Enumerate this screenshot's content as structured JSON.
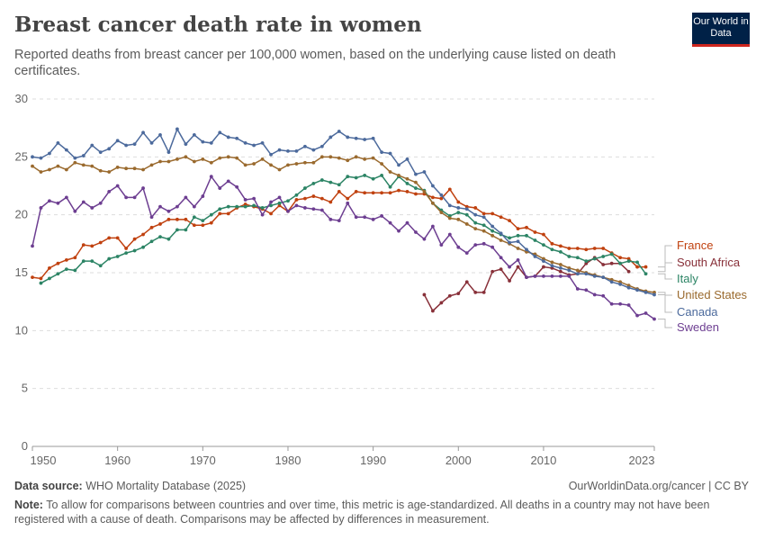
{
  "header": {
    "title": "Breast cancer death rate in women",
    "subtitle": "Reported deaths from breast cancer per 100,000 women, based on the underlying cause listed on death certificates.",
    "logo": "Our World in Data"
  },
  "footer": {
    "source_label": "Data source:",
    "source": "WHO Mortality Database (2025)",
    "license": "OurWorldinData.org/cancer | CC BY",
    "note_label": "Note:",
    "note": "To allow for comparisons between countries and over time, this metric is age-standardized. All deaths in a country may not have been registered with a cause of death. Comparisons may be affected by differences in measurement."
  },
  "chart_data": {
    "type": "line",
    "title": "Breast cancer death rate in women",
    "xlabel": "",
    "ylabel": "",
    "xlim": [
      1950,
      2023
    ],
    "ylim": [
      0,
      30
    ],
    "grid": "horizontal dashed",
    "legend": "right, inline labels",
    "xticks": [
      "1950",
      "1960",
      "1970",
      "1980",
      "1990",
      "2000",
      "2010",
      "2023"
    ],
    "yticks": [
      "0",
      "5",
      "10",
      "15",
      "20",
      "25",
      "30"
    ],
    "series": [
      {
        "name": "France",
        "color": "#c0410f",
        "start": 1950,
        "values": [
          14.6,
          14.5,
          15.4,
          15.8,
          16.1,
          16.3,
          17.4,
          17.3,
          17.6,
          18.0,
          18.0,
          17.1,
          17.9,
          18.3,
          18.9,
          19.2,
          19.6,
          19.6,
          19.6,
          19.1,
          19.1,
          19.3,
          20.1,
          20.1,
          20.6,
          20.9,
          20.7,
          20.5,
          20.1,
          20.8,
          20.3,
          21.3,
          21.4,
          21.6,
          21.4,
          21.1,
          22.0,
          21.4,
          22.0,
          21.9,
          21.9,
          21.9,
          21.9,
          22.1,
          22.0,
          21.8,
          21.8,
          21.5,
          21.4,
          22.2,
          21.1,
          20.7,
          20.6,
          20.1,
          20.1,
          19.8,
          19.5,
          18.8,
          18.9,
          18.5,
          18.3,
          17.5,
          17.3,
          17.1,
          17.1,
          17.0,
          17.1,
          17.1,
          16.7,
          16.3,
          16.2,
          15.5,
          15.5
        ]
      },
      {
        "name": "South Africa",
        "color": "#883039",
        "start": 1996,
        "values": [
          13.1,
          11.7,
          12.4,
          13.0,
          13.2,
          14.2,
          13.3,
          13.3,
          15.1,
          15.3,
          14.3,
          15.5,
          14.6,
          14.7,
          15.5,
          15.4,
          15.1,
          14.8,
          14.9,
          15.8,
          16.3,
          15.7,
          15.8,
          15.8,
          15.1
        ]
      },
      {
        "name": "Italy",
        "color": "#2c8465",
        "start": 1951,
        "values": [
          14.1,
          14.5,
          14.9,
          15.3,
          15.2,
          16.0,
          16.0,
          15.6,
          16.2,
          16.4,
          16.7,
          16.9,
          17.2,
          17.7,
          18.1,
          17.9,
          18.7,
          18.7,
          19.8,
          19.5,
          20.0,
          20.5,
          20.7,
          20.7,
          20.7,
          20.8,
          20.6,
          20.8,
          21.0,
          21.2,
          21.7,
          22.3,
          22.7,
          23.0,
          22.8,
          22.6,
          23.3,
          23.2,
          23.4,
          23.1,
          23.4,
          22.4,
          23.3,
          22.7,
          22.3,
          22.1,
          21.0,
          20.4,
          19.9,
          20.2,
          20.0,
          19.3,
          19.1,
          18.6,
          18.3,
          18.0,
          18.2,
          18.2,
          17.8,
          17.4,
          17.0,
          16.8,
          16.4,
          16.3,
          16.0,
          16.2,
          16.4,
          16.6,
          15.8,
          16.0,
          15.9,
          14.9
        ]
      },
      {
        "name": "United States",
        "color": "#9a6a2e",
        "start": 1950,
        "values": [
          24.2,
          23.7,
          23.9,
          24.2,
          23.9,
          24.5,
          24.3,
          24.2,
          23.8,
          23.7,
          24.1,
          24.0,
          24.0,
          23.9,
          24.3,
          24.6,
          24.6,
          24.8,
          25.0,
          24.6,
          24.8,
          24.5,
          24.9,
          25.0,
          24.9,
          24.3,
          24.4,
          24.8,
          24.3,
          23.9,
          24.3,
          24.4,
          24.5,
          24.5,
          25.0,
          25.0,
          24.9,
          24.7,
          25.0,
          24.8,
          24.9,
          24.4,
          23.7,
          23.4,
          23.1,
          22.8,
          22.0,
          21.0,
          20.2,
          19.7,
          19.6,
          19.2,
          18.8,
          18.6,
          18.2,
          17.8,
          17.5,
          17.1,
          16.8,
          16.6,
          16.2,
          15.9,
          15.7,
          15.4,
          15.2,
          15.0,
          14.8,
          14.6,
          14.4,
          14.2,
          13.9,
          13.6,
          13.4,
          13.3
        ]
      },
      {
        "name": "Canada",
        "color": "#4c6a9c",
        "start": 1950,
        "values": [
          25.0,
          24.9,
          25.3,
          26.2,
          25.6,
          24.9,
          25.1,
          26.0,
          25.4,
          25.7,
          26.4,
          26.0,
          26.1,
          27.1,
          26.2,
          26.9,
          25.4,
          27.4,
          26.1,
          26.9,
          26.3,
          26.2,
          27.1,
          26.7,
          26.6,
          26.2,
          26.0,
          26.2,
          25.2,
          25.6,
          25.5,
          25.5,
          25.9,
          25.6,
          25.9,
          26.7,
          27.2,
          26.7,
          26.6,
          26.5,
          26.6,
          25.4,
          25.3,
          24.3,
          24.8,
          23.5,
          23.7,
          22.5,
          21.7,
          20.8,
          20.6,
          20.5,
          20.0,
          19.8,
          19.0,
          18.4,
          17.6,
          17.7,
          17.0,
          16.4,
          16.0,
          15.6,
          15.4,
          15.2,
          14.9,
          14.9,
          14.7,
          14.6,
          14.2,
          14.0,
          13.7,
          13.5,
          13.3,
          13.1
        ]
      },
      {
        "name": "Sweden",
        "color": "#6d3e91",
        "start": 1950,
        "values": [
          17.3,
          20.6,
          21.2,
          21.0,
          21.5,
          20.3,
          21.1,
          20.6,
          21.0,
          22.0,
          22.5,
          21.5,
          21.5,
          22.3,
          19.8,
          20.7,
          20.3,
          20.7,
          21.5,
          20.7,
          21.6,
          23.3,
          22.3,
          22.9,
          22.4,
          21.3,
          21.4,
          20.0,
          21.1,
          21.5,
          20.3,
          20.8,
          20.6,
          20.5,
          20.4,
          19.6,
          19.5,
          21.0,
          19.8,
          19.8,
          19.6,
          19.9,
          19.3,
          18.6,
          19.3,
          18.5,
          17.9,
          19.0,
          17.4,
          18.3,
          17.2,
          16.7,
          17.4,
          17.5,
          17.2,
          16.3,
          15.5,
          16.1,
          14.6,
          14.7,
          14.7,
          14.7,
          14.7,
          14.7,
          13.6,
          13.5,
          13.1,
          13.0,
          12.3,
          12.3,
          12.2,
          11.3,
          11.5,
          11.0
        ]
      }
    ]
  }
}
